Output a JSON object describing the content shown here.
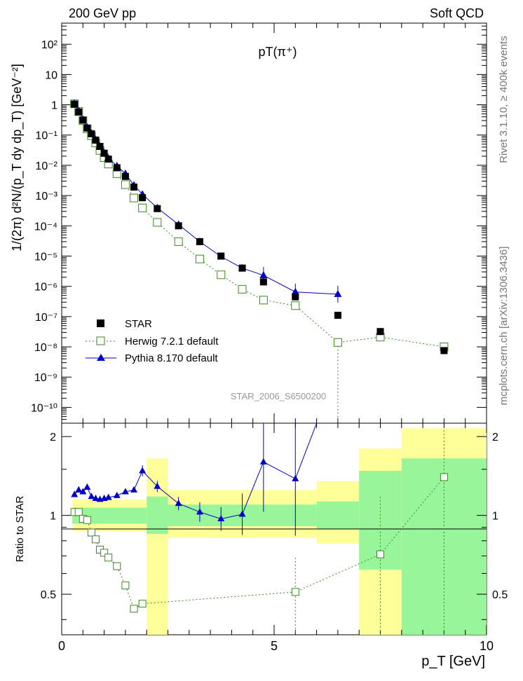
{
  "header": {
    "left": "200 GeV pp",
    "right": "Soft QCD"
  },
  "side": {
    "top": "Rivet 3.1.10, ≥ 400k events",
    "bottom": "mcplots.cern.ch [arXiv:1306.3436]"
  },
  "colors": {
    "star": "#000000",
    "herwig": "#3a8a1e",
    "pythia": "#0000cc",
    "band_yellow": "#ffff99",
    "band_green": "#99f599"
  },
  "chart_data": {
    "type": "scatter",
    "title": "pT(π⁺)",
    "analysis_id": "STAR_2006_S6500200",
    "xlabel": "p_T [GeV]",
    "ylabel": "1/(2π) d²N/(p_T dy dp_T) [GeV⁻²]",
    "ratio_ylabel": "Ratio to STAR",
    "xlim": [
      0,
      10
    ],
    "ylim": [
      3e-11,
      500
    ],
    "ratio_ylim": [
      0.35,
      2.25
    ],
    "x_ticks": [
      "0",
      "5",
      "10"
    ],
    "y_ticks": [
      "10⁻¹⁰",
      "10⁻⁹",
      "10⁻⁸",
      "10⁻⁷",
      "10⁻⁶",
      "10⁻⁵",
      "10⁻⁴",
      "10⁻³",
      "10⁻²",
      "10⁻¹",
      "1",
      "10",
      "10²"
    ],
    "ratio_y_ticks": [
      "0.5",
      "1",
      "2"
    ],
    "legend": [
      "STAR",
      "Herwig 7.2.1 default",
      "Pythia 8.170 default"
    ],
    "series": [
      {
        "name": "STAR",
        "x": [
          0.3,
          0.4,
          0.5,
          0.6,
          0.7,
          0.8,
          0.9,
          1.0,
          1.1,
          1.3,
          1.5,
          1.7,
          1.9,
          2.25,
          2.75,
          3.25,
          3.75,
          4.25,
          4.75,
          5.5,
          6.5,
          7.5,
          9.0
        ],
        "y": [
          1.05,
          0.58,
          0.31,
          0.17,
          0.11,
          0.068,
          0.042,
          0.025,
          0.016,
          0.0083,
          0.0043,
          0.0019,
          0.00085,
          0.00037,
          0.0001,
          3e-05,
          1e-05,
          4e-06,
          1.4e-06,
          4.5e-07,
          1.1e-07,
          3.2e-08,
          7.5e-09
        ]
      },
      {
        "name": "Herwig 7.2.1 default",
        "x": [
          0.3,
          0.4,
          0.5,
          0.6,
          0.7,
          0.8,
          0.9,
          1.0,
          1.1,
          1.3,
          1.5,
          1.7,
          1.9,
          2.25,
          2.75,
          3.25,
          3.75,
          4.25,
          4.75,
          5.5,
          6.5,
          7.5,
          9.0
        ],
        "y": [
          1.08,
          0.6,
          0.3,
          0.16,
          0.095,
          0.055,
          0.031,
          0.018,
          0.011,
          0.0053,
          0.0023,
          0.00083,
          0.00039,
          0.00013,
          3e-05,
          8e-06,
          2.4e-06,
          8e-07,
          3.5e-07,
          2.3e-07,
          1.4e-08,
          2.1e-08,
          1e-08
        ]
      },
      {
        "name": "Pythia 8.170 default",
        "x": [
          0.3,
          0.4,
          0.5,
          0.6,
          0.7,
          0.8,
          0.9,
          1.0,
          1.1,
          1.3,
          1.5,
          1.7,
          1.9,
          2.25,
          2.75,
          3.25,
          3.75,
          4.25,
          4.75,
          5.5,
          6.5
        ],
        "y": [
          1.1,
          0.62,
          0.33,
          0.18,
          0.115,
          0.07,
          0.043,
          0.026,
          0.017,
          0.0095,
          0.0053,
          0.0022,
          0.0011,
          0.00039,
          0.00011,
          3e-05,
          9.6e-06,
          4e-06,
          2.3e-06,
          6.5e-07,
          5.5e-07
        ]
      }
    ],
    "ratio_series": [
      {
        "name": "Herwig 7.2.1 default",
        "x": [
          0.3,
          0.4,
          0.5,
          0.6,
          0.7,
          0.8,
          0.9,
          1.0,
          1.1,
          1.3,
          1.5,
          1.7,
          1.9,
          5.5,
          7.5,
          9.0
        ],
        "y": [
          1.03,
          1.03,
          0.97,
          0.96,
          0.86,
          0.81,
          0.74,
          0.72,
          0.69,
          0.64,
          0.54,
          0.44,
          0.46,
          0.51,
          0.71,
          1.4
        ]
      },
      {
        "name": "Pythia 8.170 default",
        "x": [
          0.3,
          0.4,
          0.5,
          0.6,
          0.7,
          0.8,
          0.9,
          1.0,
          1.1,
          1.3,
          1.5,
          1.7,
          1.9,
          2.25,
          2.75,
          3.25,
          3.75,
          4.25,
          4.75,
          5.5,
          6.0
        ],
        "y": [
          1.2,
          1.25,
          1.23,
          1.28,
          1.18,
          1.16,
          1.15,
          1.16,
          1.17,
          1.19,
          1.23,
          1.25,
          1.48,
          1.29,
          1.11,
          1.03,
          0.97,
          1.01,
          1.6,
          1.38,
          2.3
        ]
      }
    ],
    "uncertainty_bands": [
      {
        "x": [
          0.25,
          2.0
        ],
        "yellow": [
          0.87,
          1.15
        ],
        "green": [
          0.93,
          1.07
        ]
      },
      {
        "x": [
          2.0,
          2.5
        ],
        "yellow": [
          0.35,
          1.65
        ],
        "green": [
          0.85,
          1.18
        ]
      },
      {
        "x": [
          2.5,
          6.0
        ],
        "yellow": [
          0.82,
          1.25
        ],
        "green": [
          0.91,
          1.1
        ]
      },
      {
        "x": [
          6.0,
          7.0
        ],
        "yellow": [
          0.78,
          1.35
        ],
        "green": [
          0.89,
          1.13
        ]
      },
      {
        "x": [
          7.0,
          8.0
        ],
        "yellow": [
          0.35,
          1.8
        ],
        "green": [
          0.62,
          1.48
        ]
      },
      {
        "x": [
          8.0,
          10.0
        ],
        "yellow": [
          0.35,
          2.15
        ],
        "green": [
          0.35,
          1.65
        ]
      }
    ]
  }
}
